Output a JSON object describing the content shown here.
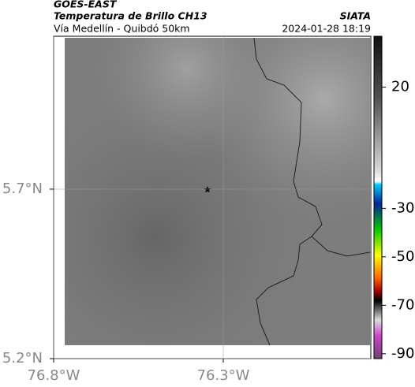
{
  "header": {
    "title": "GOES-EAST",
    "subtitle": "Temperatura de Brillo CH13",
    "region": "Vía Medellín - Quibdó 50km",
    "source": "SIATA",
    "datetime": "2024-01-28 18:19"
  },
  "map": {
    "xlim": [
      -76.8,
      -75.865
    ],
    "ylim": [
      5.2,
      6.151
    ],
    "xticks": [
      {
        "value": -76.8,
        "label": "76.8°W"
      },
      {
        "value": -76.3,
        "label": "76.3°W"
      }
    ],
    "yticks": [
      {
        "value": 5.2,
        "label": "5.2°N"
      },
      {
        "value": 5.7,
        "label": "5.7°N"
      }
    ]
  },
  "colorbar": {
    "lim": [
      -92,
      41
    ],
    "ticks": [
      20,
      -30,
      -50,
      -70,
      -90
    ]
  }
}
